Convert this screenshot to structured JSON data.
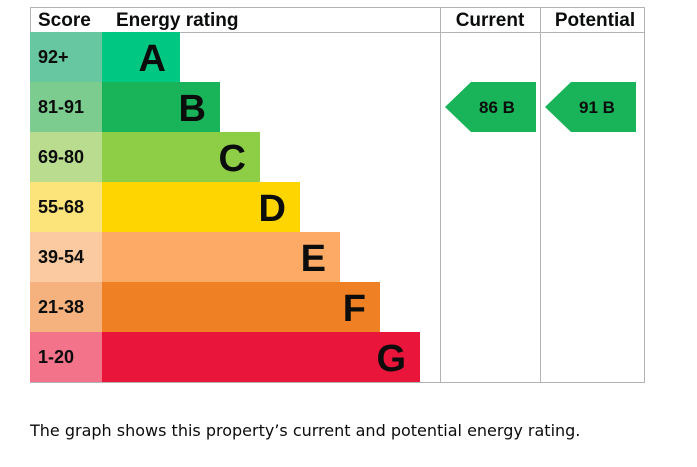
{
  "chart_data": {
    "type": "bar",
    "headers": {
      "score": "Score",
      "rating": "Energy rating",
      "current": "Current",
      "potential": "Potential"
    },
    "bands": [
      {
        "letter": "A",
        "range": "92+",
        "score_color": "#67c7a0",
        "bar_color": "#00c781"
      },
      {
        "letter": "B",
        "range": "81-91",
        "score_color": "#7ccb8f",
        "bar_color": "#19b459"
      },
      {
        "letter": "C",
        "range": "69-80",
        "score_color": "#b9dc8e",
        "bar_color": "#8dce46"
      },
      {
        "letter": "D",
        "range": "55-68",
        "score_color": "#fde47a",
        "bar_color": "#ffd500"
      },
      {
        "letter": "E",
        "range": "39-54",
        "score_color": "#fccaa0",
        "bar_color": "#fcaa65"
      },
      {
        "letter": "F",
        "range": "21-38",
        "score_color": "#f5b27e",
        "bar_color": "#ef8023"
      },
      {
        "letter": "G",
        "range": "1-20",
        "score_color": "#f2738a",
        "bar_color": "#e9153b"
      }
    ],
    "current": {
      "value": 86,
      "band": "B",
      "label": "86  B",
      "color": "#19b459"
    },
    "potential": {
      "value": 91,
      "band": "B",
      "label": "91  B",
      "color": "#19b459"
    }
  },
  "caption": "The graph shows this property’s current and potential energy rating."
}
